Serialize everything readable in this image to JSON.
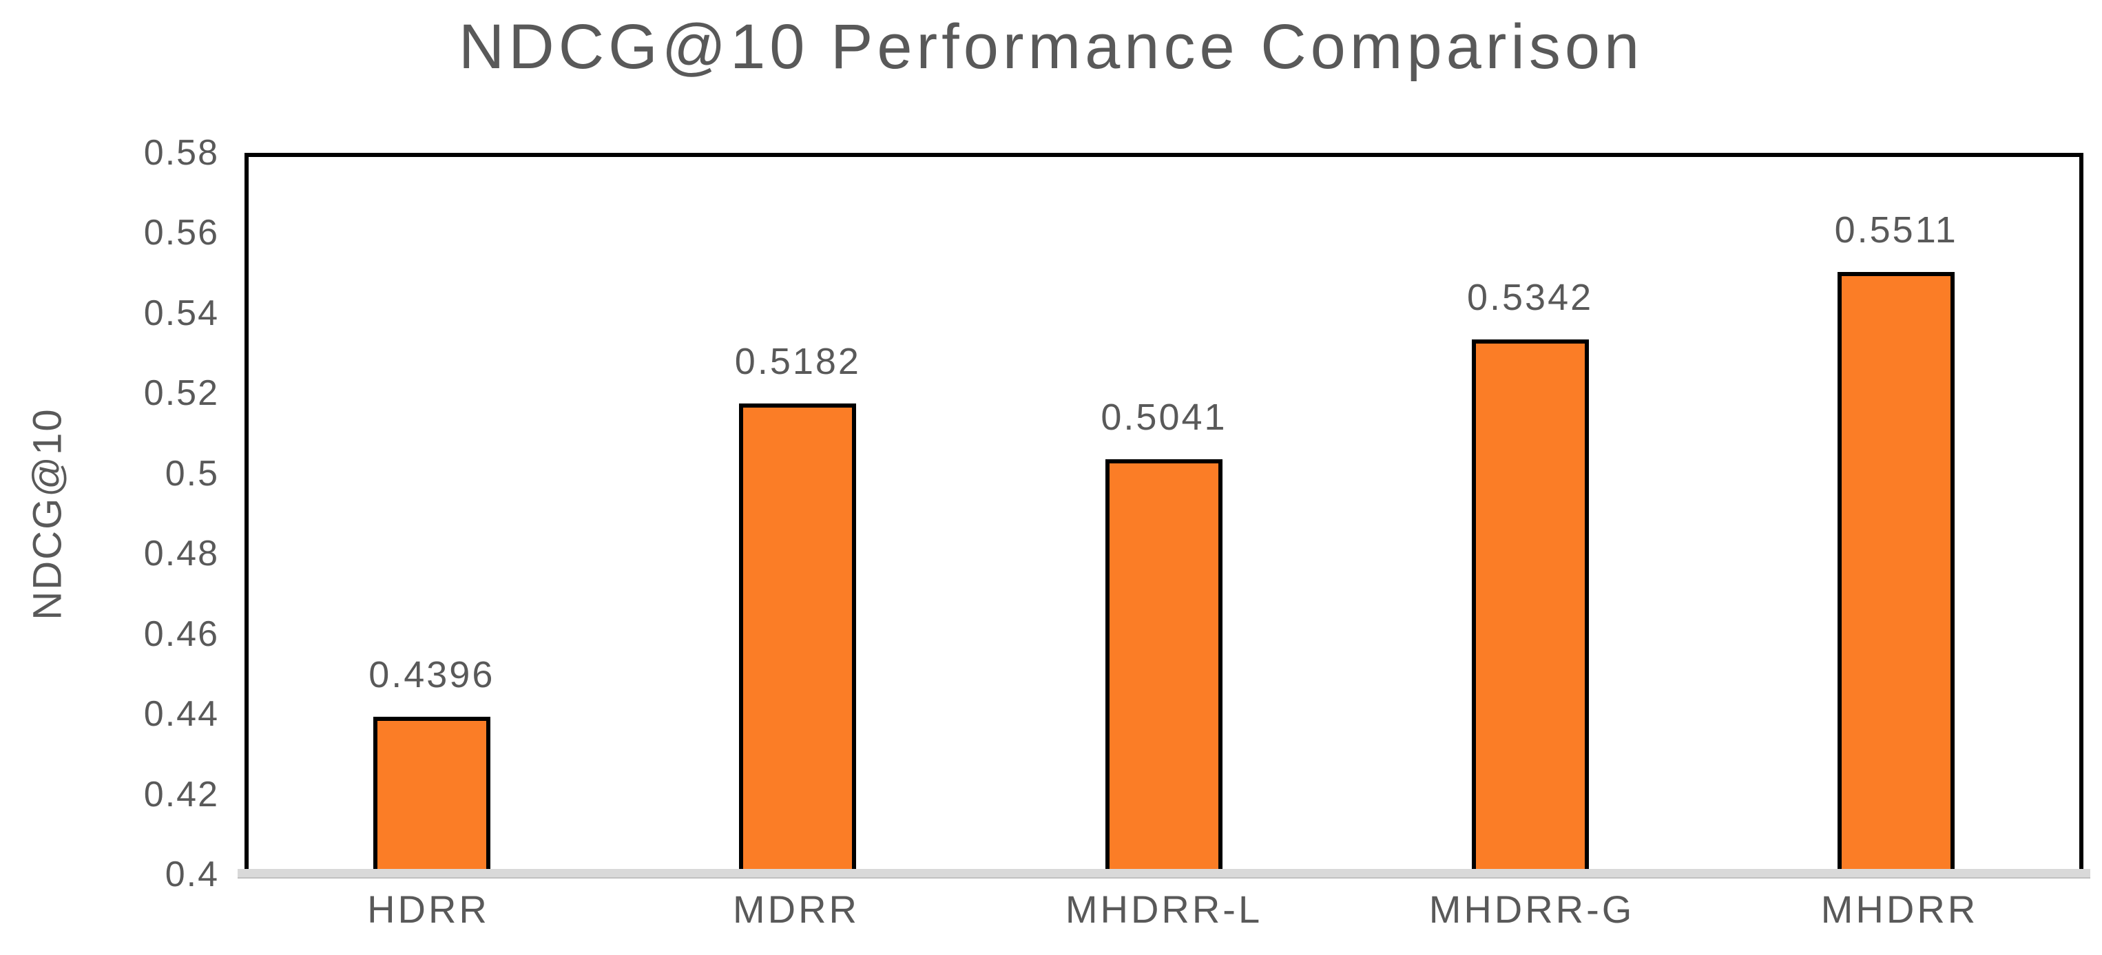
{
  "chart_data": {
    "type": "bar",
    "title": "NDCG@10 Performance Comparison",
    "xlabel": "",
    "ylabel": "NDCG@10",
    "categories": [
      "HDRR",
      "MDRR",
      "MHDRR-L",
      "MHDRR-G",
      "MHDRR"
    ],
    "values": [
      0.4396,
      0.5182,
      0.5041,
      0.5342,
      0.5511
    ],
    "value_labels": [
      "0.4396",
      "0.5182",
      "0.5041",
      "0.5342",
      "0.5511"
    ],
    "ylim": [
      0.4,
      0.58
    ],
    "ytick_labels": [
      "0.58",
      "0.56",
      "0.54",
      "0.52",
      "0.5",
      "0.48",
      "0.46",
      "0.44",
      "0.42",
      "0.4"
    ],
    "grid": false,
    "legend": false,
    "colors": {
      "bar_fill": "#fb7d26",
      "bar_border": "#000000",
      "text": "#595959",
      "plot_border": "#000000",
      "baseline": "#d9d9d9"
    }
  }
}
